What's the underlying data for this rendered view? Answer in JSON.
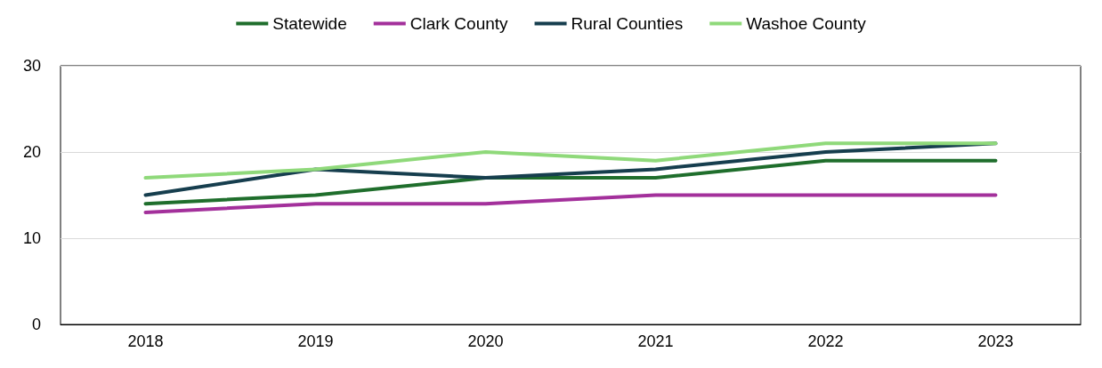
{
  "chart_data": {
    "type": "line",
    "categories": [
      "2018",
      "2019",
      "2020",
      "2021",
      "2022",
      "2023"
    ],
    "series": [
      {
        "name": "Statewide",
        "color": "#1f6e2c",
        "values": [
          14,
          15,
          17,
          17,
          19,
          19
        ]
      },
      {
        "name": "Clark County",
        "color": "#a3309b",
        "values": [
          13,
          14,
          14,
          15,
          15,
          15
        ]
      },
      {
        "name": "Rural Counties",
        "color": "#163e4e",
        "values": [
          15,
          18,
          17,
          18,
          20,
          21
        ]
      },
      {
        "name": "Washoe County",
        "color": "#8fd97a",
        "values": [
          17,
          18,
          20,
          19,
          21,
          21
        ]
      }
    ],
    "ylim": [
      0,
      30
    ],
    "yticks": [
      0,
      10,
      20,
      30
    ],
    "grid": "y",
    "legend": "top",
    "marker": "none",
    "line_style": "solid"
  }
}
